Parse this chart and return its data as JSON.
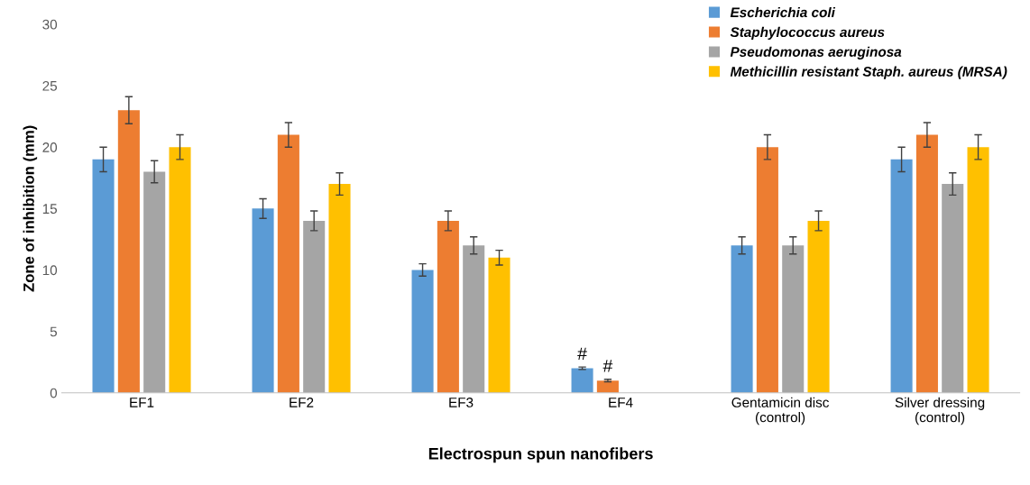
{
  "chart_data": {
    "type": "bar",
    "xlabel": "Electrospun spun nanofibers",
    "ylabel": "Zone of inhibition (mm)",
    "categories": [
      "EF1",
      "EF2",
      "EF3",
      "EF4",
      "Gentamicin disc\n(control)",
      "Silver dressing\n(control)"
    ],
    "series": [
      {
        "name": "Escherichia coli",
        "color": "#5b9bd5",
        "values": [
          19,
          15,
          10,
          2,
          12,
          19
        ],
        "errors": [
          1,
          0.8,
          0.5,
          0.1,
          0.7,
          1
        ]
      },
      {
        "name": "Staphylococcus aureus",
        "color": "#ed7d31",
        "values": [
          23,
          21,
          14,
          1,
          20,
          21
        ],
        "errors": [
          1.1,
          1,
          0.8,
          0.1,
          1,
          1
        ]
      },
      {
        "name": "Pseudomonas aeruginosa",
        "color": "#a5a5a5",
        "values": [
          18,
          14,
          12,
          null,
          12,
          17
        ],
        "errors": [
          0.9,
          0.8,
          0.7,
          null,
          0.7,
          0.9
        ]
      },
      {
        "name": "Methicillin resistant Staph. aureus (MRSA)",
        "color": "#ffc000",
        "values": [
          20,
          17,
          11,
          null,
          14,
          20
        ],
        "errors": [
          1,
          0.9,
          0.6,
          null,
          0.8,
          1
        ]
      }
    ],
    "annotations": [
      "#",
      "#"
    ],
    "ylim": [
      0,
      30
    ],
    "yticks": [
      0,
      5,
      10,
      15,
      20,
      25,
      30
    ],
    "grid": false,
    "legend": "top right"
  }
}
